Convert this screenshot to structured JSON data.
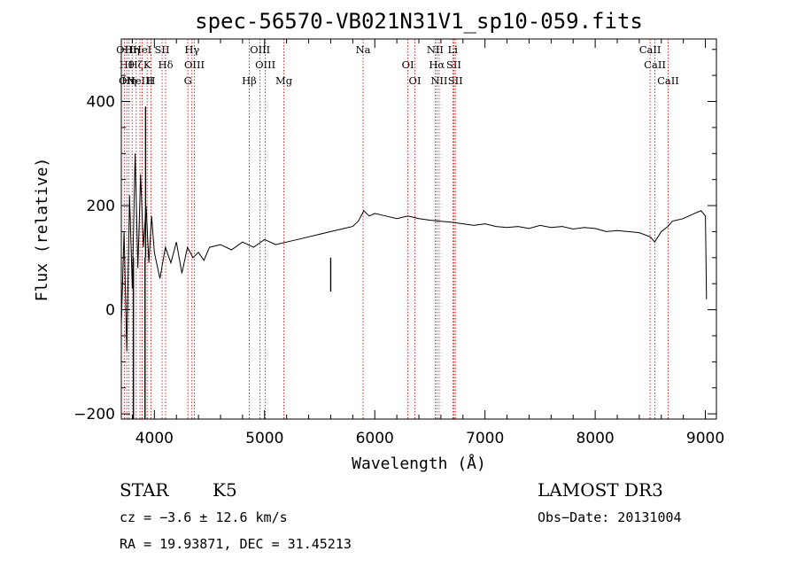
{
  "chart_data": {
    "type": "line",
    "title": "spec-56570-VB021N31V1_sp10-059.fits",
    "xlabel": "Wavelength (Å)",
    "ylabel": "Flux (relative)",
    "xlim": [
      3700,
      9100
    ],
    "ylim": [
      -210,
      520
    ],
    "x_ticks": [
      4000,
      5000,
      6000,
      7000,
      8000,
      9000
    ],
    "y_ticks": [
      -200,
      0,
      200,
      400
    ],
    "grid": false,
    "series": [
      {
        "name": "flux",
        "x": [
          3700,
          3725,
          3750,
          3775,
          3800,
          3825,
          3850,
          3875,
          3900,
          3925,
          3950,
          3975,
          4000,
          4050,
          4100,
          4150,
          4200,
          4250,
          4300,
          4350,
          4400,
          4450,
          4500,
          4600,
          4700,
          4800,
          4900,
          5000,
          5100,
          5200,
          5300,
          5400,
          5500,
          5600,
          5700,
          5800,
          5850,
          5900,
          5950,
          6000,
          6100,
          6200,
          6300,
          6400,
          6500,
          6600,
          6700,
          6800,
          6900,
          7000,
          7100,
          7200,
          7300,
          7400,
          7500,
          7600,
          7700,
          7800,
          7900,
          8000,
          8100,
          8200,
          8300,
          8400,
          8500,
          8540,
          8600,
          8660,
          8700,
          8800,
          8900,
          8960,
          9000,
          9010
        ],
        "values": [
          -30,
          150,
          -80,
          220,
          40,
          300,
          80,
          260,
          120,
          200,
          90,
          180,
          110,
          60,
          120,
          90,
          130,
          70,
          120,
          100,
          110,
          95,
          120,
          125,
          115,
          130,
          120,
          135,
          125,
          130,
          135,
          140,
          145,
          150,
          155,
          160,
          170,
          190,
          180,
          185,
          180,
          175,
          180,
          175,
          172,
          170,
          168,
          165,
          162,
          165,
          160,
          158,
          160,
          156,
          162,
          158,
          160,
          155,
          158,
          156,
          150,
          152,
          150,
          148,
          140,
          130,
          150,
          160,
          170,
          175,
          185,
          190,
          180,
          20
        ]
      }
    ],
    "spikes": [
      {
        "x": 3810,
        "y": -210
      },
      {
        "x": 3915,
        "y": -210
      },
      {
        "x": 3920,
        "y": 390
      },
      {
        "x": 5600,
        "y": 35
      }
    ],
    "spectral_lines": [
      {
        "x": 3727,
        "labels": [
          "OII"
        ]
      },
      {
        "x": 3750,
        "labels": [
          "Hθ",
          "OII"
        ]
      },
      {
        "x": 3770,
        "labels": [
          "Hη"
        ]
      },
      {
        "x": 3798,
        "labels": [
          "Hη"
        ]
      },
      {
        "x": 3835,
        "labels": [
          "Hζ"
        ]
      },
      {
        "x": 3869,
        "labels": [
          "NeIII"
        ]
      },
      {
        "x": 3889,
        "labels": [
          "HeI"
        ]
      },
      {
        "x": 3934,
        "labels": [
          "K"
        ]
      },
      {
        "x": 3969,
        "labels": [
          "H"
        ]
      },
      {
        "x": 4070,
        "labels": [
          "SII"
        ]
      },
      {
        "x": 4102,
        "labels": [
          "Hδ"
        ]
      },
      {
        "x": 4304,
        "labels": [
          "G"
        ]
      },
      {
        "x": 4341,
        "labels": [
          "Hγ"
        ]
      },
      {
        "x": 4363,
        "labels": [
          "OIII"
        ]
      },
      {
        "x": 4861,
        "labels": [
          "Hβ"
        ]
      },
      {
        "x": 4959,
        "labels": [
          "OIII"
        ]
      },
      {
        "x": 5007,
        "labels": [
          "OIII"
        ]
      },
      {
        "x": 5175,
        "labels": [
          "Mg"
        ]
      },
      {
        "x": 5894,
        "labels": [
          "Na"
        ]
      },
      {
        "x": 6300,
        "labels": [
          "OI"
        ]
      },
      {
        "x": 6364,
        "labels": [
          "OI"
        ]
      },
      {
        "x": 6548,
        "labels": [
          "NII"
        ]
      },
      {
        "x": 6563,
        "labels": [
          "Hα"
        ]
      },
      {
        "x": 6584,
        "labels": [
          "NII"
        ]
      },
      {
        "x": 6708,
        "labels": [
          "Li"
        ]
      },
      {
        "x": 6717,
        "labels": [
          "SII"
        ]
      },
      {
        "x": 6731,
        "labels": [
          "SII"
        ]
      },
      {
        "x": 8498,
        "labels": [
          "CaII"
        ]
      },
      {
        "x": 8542,
        "labels": [
          "CaII"
        ]
      },
      {
        "x": 8662,
        "labels": [
          "CaII"
        ]
      }
    ]
  },
  "annotations": {
    "class": "STAR",
    "subclass": "K5",
    "survey": "LAMOST DR3",
    "cz": "cz = −3.6 ± 12.6 km/s",
    "obs_date": "Obs−Date: 20131004",
    "coords": "RA =  19.93871, DEC =  31.45213"
  },
  "colors": {
    "spectrum": "#000000",
    "line_marker": "#cc0000",
    "axes": "#000000"
  }
}
